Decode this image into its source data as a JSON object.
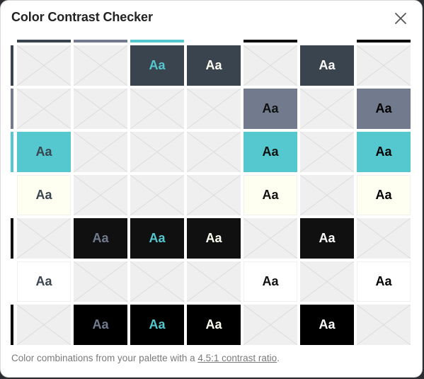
{
  "dialog": {
    "title": "Color Contrast Checker",
    "close_icon": "close-icon"
  },
  "palette": {
    "colors": [
      "#3a444f",
      "#727b8e",
      "#54c8ce",
      "#fefff1",
      "#101010",
      "#ffffff",
      "#000000"
    ]
  },
  "sample_text": "Aa",
  "matrix": [
    [
      null,
      null,
      "Aa",
      "Aa",
      null,
      "Aa",
      null
    ],
    [
      null,
      null,
      null,
      null,
      "Aa",
      null,
      "Aa"
    ],
    [
      "Aa",
      null,
      null,
      null,
      "Aa",
      null,
      "Aa"
    ],
    [
      "Aa",
      null,
      null,
      null,
      "Aa",
      null,
      "Aa"
    ],
    [
      null,
      "Aa",
      "Aa",
      "Aa",
      null,
      "Aa",
      null
    ],
    [
      "Aa",
      null,
      null,
      null,
      "Aa",
      null,
      "Aa"
    ],
    [
      null,
      "Aa",
      "Aa",
      "Aa",
      null,
      "Aa",
      null
    ]
  ],
  "footer": {
    "text_before": "Color combinations from your palette with a ",
    "link": "4.5:1 contrast ratio",
    "text_after": "."
  }
}
